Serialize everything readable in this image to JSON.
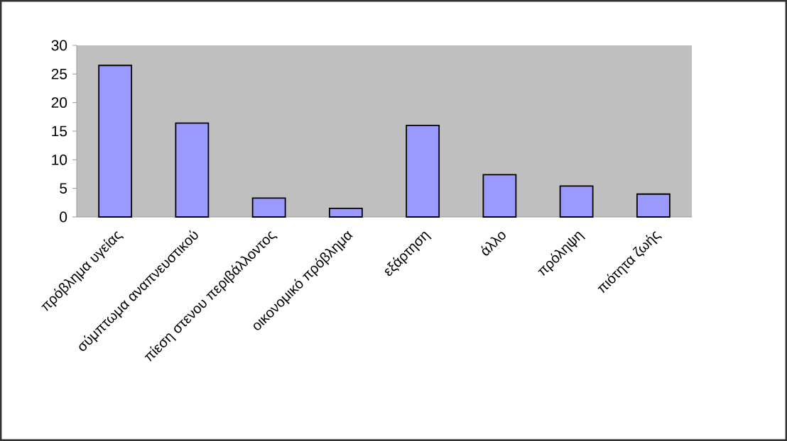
{
  "chart_data": {
    "type": "bar",
    "categories": [
      "πρόβλημα υγείας",
      "σύμπτωμα αναπνευστικού",
      "πίεση στενου περιβάλλοντος",
      "οικονομικό πρόβλημα",
      "εξάρτηση",
      "άλλο",
      "πρόληψη",
      "πιότητα ζωής"
    ],
    "values": [
      26.5,
      16.4,
      3.3,
      1.5,
      16.0,
      7.4,
      5.4,
      4.0
    ],
    "color": "#9999ff",
    "ylim": [
      0,
      30
    ],
    "yticks": [
      0,
      5,
      10,
      15,
      20,
      25,
      30
    ]
  }
}
